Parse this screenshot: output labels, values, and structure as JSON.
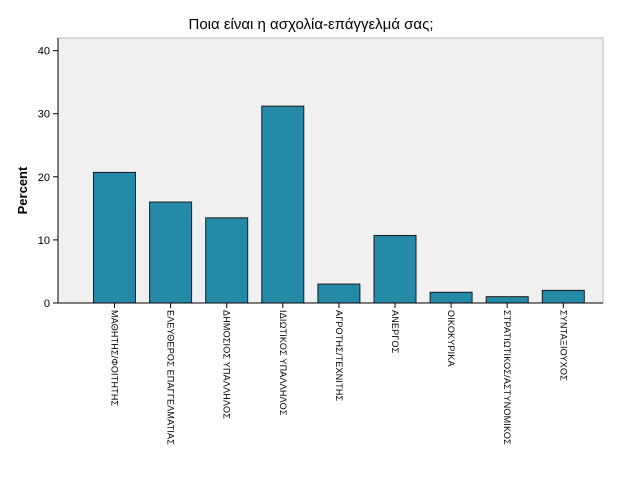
{
  "chart_data": {
    "type": "bar",
    "title": "Ποια είναι η ασχολία-επάγγελμά σας;",
    "xlabel": "",
    "ylabel": "Percent",
    "ylim": [
      0,
      42
    ],
    "yticks": [
      0,
      10,
      20,
      30,
      40
    ],
    "grid": false,
    "categories": [
      "ΜΑΘΗΤΗΣ/ΦΟΙΤΗΤΗΣ",
      "ΕΛΕΥΘΕΡΟΣ ΕΠΑΓΓΕΛΜΑΤΙΑΣ",
      "ΔΗΜΟΣΙΟΣ ΥΠΑΛΛΗΛΟΣ",
      "ΙΔΙΩΤΙΚΟΣ ΥΠΑΛΛΗΛΟΣ",
      "ΑΓΡΟΤΗΣ/ΤΕΧΝΙΤΗΣ",
      "ΑΝΕΡΓΟΣ",
      "ΟΙΚΟΚΥΡΙΚΑ",
      "ΣΤΡΑΤΙΩΤΙΚΟΣ/ΑΣΤΥΝΟΜΙΚΟΣ",
      "ΣΥΝΤΑΞΙΟΥΧΟΣ"
    ],
    "values": [
      20.7,
      16.0,
      13.5,
      31.2,
      3.0,
      10.7,
      1.7,
      1.0,
      2.0
    ],
    "colors": {
      "bar": "#2589a8",
      "bar_stroke": "#1a1a1a",
      "plot_bg": "#f0f0f0",
      "axis": "#000000"
    }
  }
}
